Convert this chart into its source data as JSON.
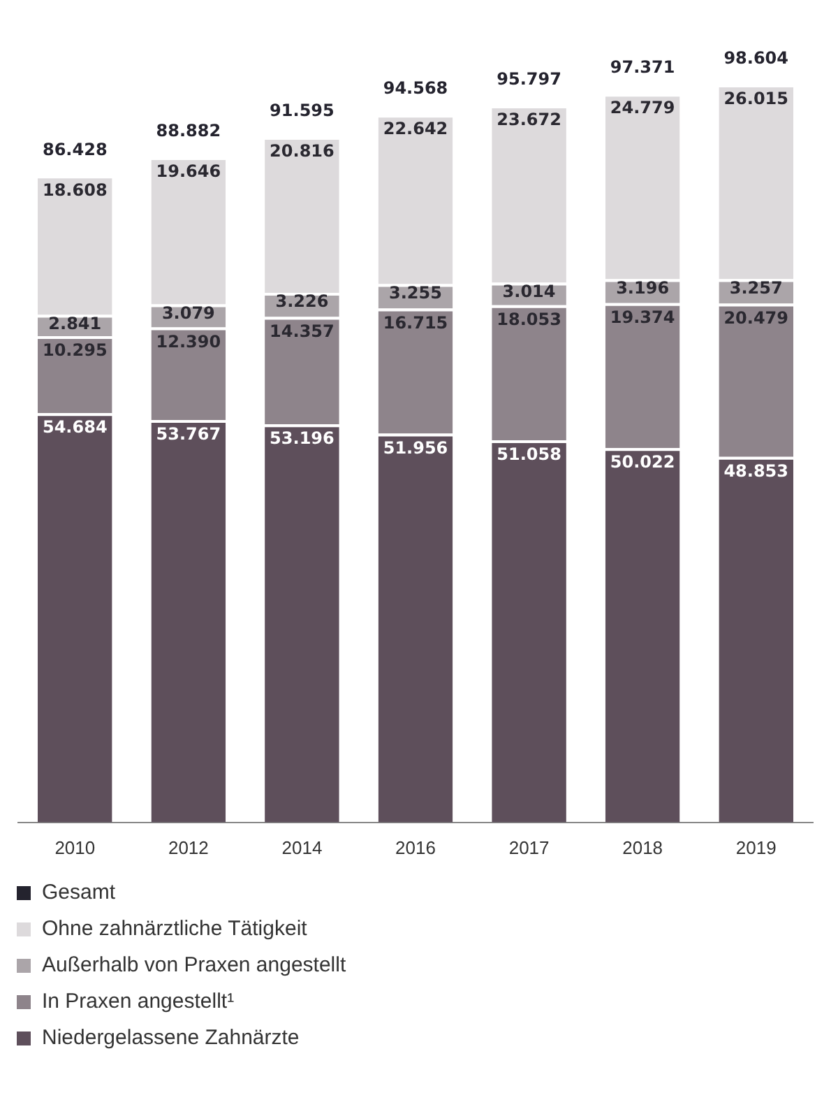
{
  "chart_data": {
    "type": "bar",
    "stacked": true,
    "categories": [
      "2010",
      "2012",
      "2014",
      "2016",
      "2017",
      "2018",
      "2019"
    ],
    "series": [
      {
        "name": "Niedergelassene Zahnärzte",
        "color": "#5e4f5b",
        "values": [
          54684,
          53767,
          53196,
          51956,
          51058,
          50022,
          48853
        ],
        "value_labels": [
          "54.684",
          "53.767",
          "53.196",
          "51.956",
          "51.058",
          "50.022",
          "48.853"
        ]
      },
      {
        "name": "In Praxen angestellt¹",
        "color": "#8e848b",
        "values": [
          10295,
          12390,
          14357,
          16715,
          18053,
          19374,
          20479
        ],
        "value_labels": [
          "10.295",
          "12.390",
          "14.357",
          "16.715",
          "18.053",
          "19.374",
          "20.479"
        ]
      },
      {
        "name": "Außerhalb von Praxen angestellt",
        "color": "#aba5a9",
        "values": [
          2841,
          3079,
          3226,
          3255,
          3014,
          3196,
          3257
        ],
        "value_labels": [
          "2.841",
          "3.079",
          "3.226",
          "3.255",
          "3.014",
          "3.196",
          "3.257"
        ]
      },
      {
        "name": "Ohne zahnärztliche Tätigkeit",
        "color": "#dddadc",
        "values": [
          18608,
          19646,
          20816,
          22642,
          23672,
          24779,
          26015
        ],
        "value_labels": [
          "18.608",
          "19.646",
          "20.816",
          "22.642",
          "23.672",
          "24.779",
          "26.015"
        ]
      },
      {
        "name": "Gesamt",
        "color": "#24232e",
        "values": [
          null,
          null,
          null,
          null,
          null,
          null,
          null
        ]
      }
    ],
    "totals": [
      "86.428",
      "88.882",
      "91.595",
      "94.568",
      "95.797",
      "97.371",
      "98.604"
    ],
    "legend": "bottom",
    "grid": false
  }
}
